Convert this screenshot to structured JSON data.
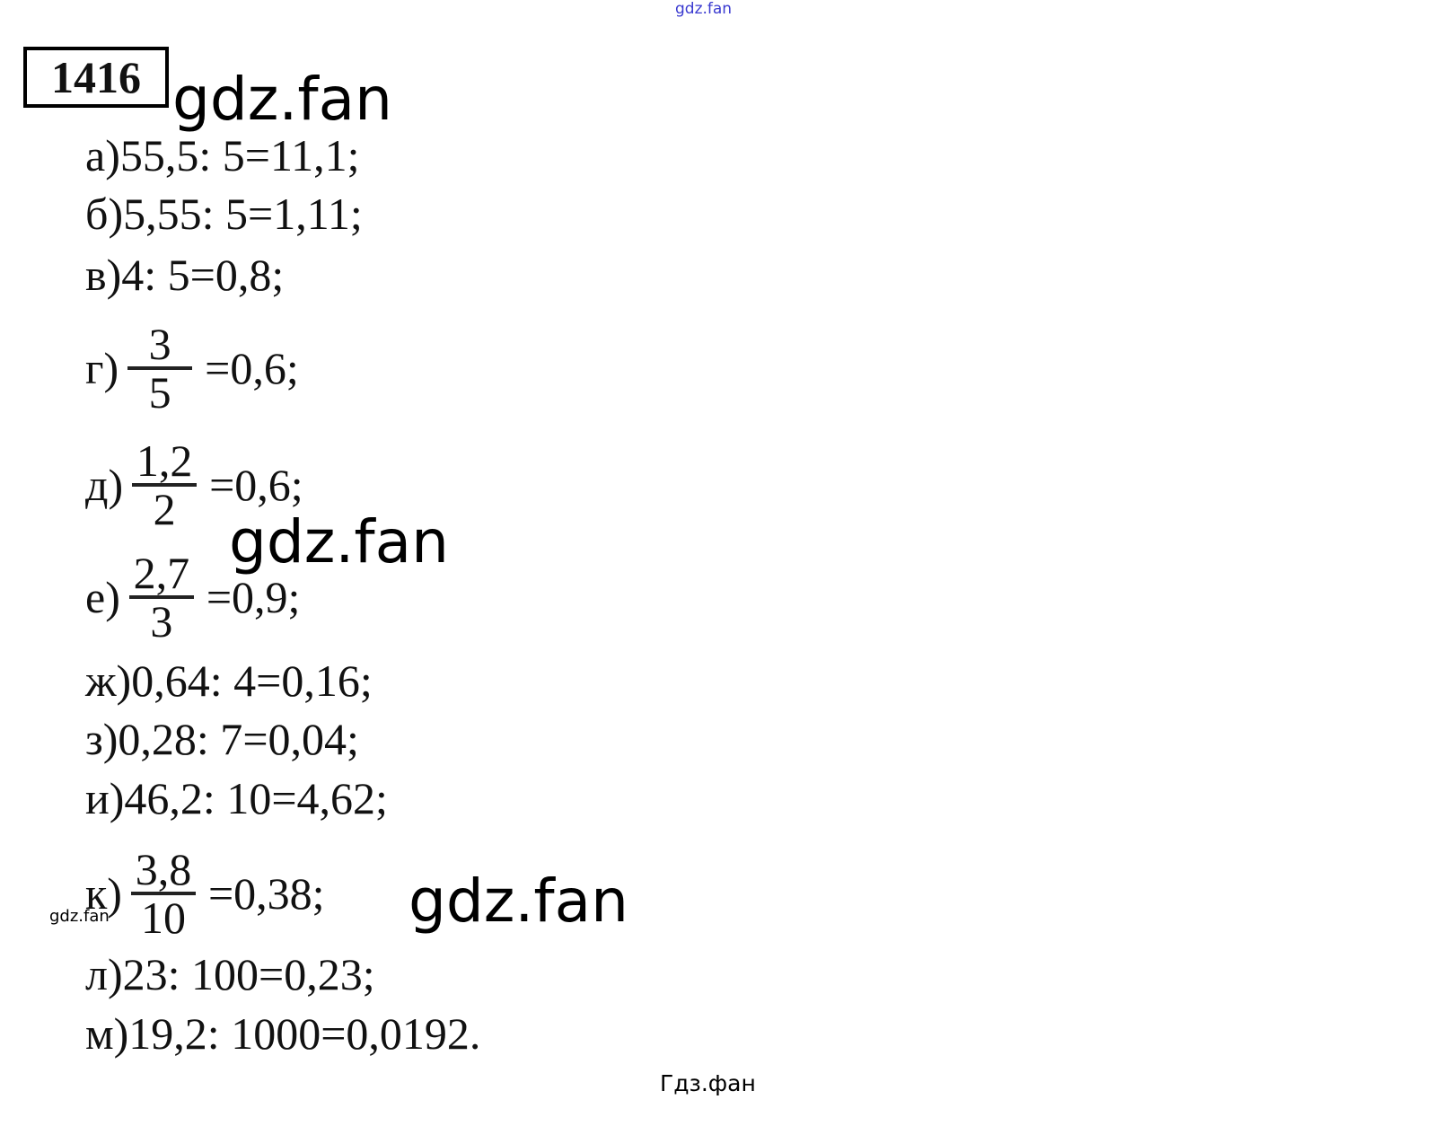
{
  "watermarks": {
    "top": "gdz.fan",
    "big": "gdz.fan",
    "small": "gdz.fan",
    "bottom": "Гдз.фан",
    "top_color": "#3a3ad0"
  },
  "problem_number": "1416",
  "items": [
    {
      "label": "а)",
      "expr": "55,5: 5",
      "eq": "=",
      "result": "11,1;"
    },
    {
      "label": "б)",
      "expr": "5,55: 5",
      "eq": "=",
      "result": "1,11;"
    },
    {
      "label": "в)",
      "expr": "4: 5",
      "eq": "=",
      "result": "0,8;"
    },
    {
      "label": "г)",
      "num": "3",
      "den": "5",
      "eq": "=",
      "result": "0,6;"
    },
    {
      "label": "д)",
      "num": "1,2",
      "den": "2",
      "eq": "=",
      "result": "0,6;"
    },
    {
      "label": "е)",
      "num": "2,7",
      "den": "3",
      "eq": "=",
      "result": "0,9;"
    },
    {
      "label": "ж)",
      "expr": "0,64: 4",
      "eq": "=",
      "result": "0,16;"
    },
    {
      "label": "з)",
      "expr": "0,28: 7",
      "eq": "=",
      "result": "0,04;"
    },
    {
      "label": "и)",
      "expr": "46,2: 10",
      "eq": "=",
      "result": "4,62;"
    },
    {
      "label": "к)",
      "num": "3,8",
      "den": "10",
      "eq": "=",
      "result": "0,38;"
    },
    {
      "label": "л)",
      "expr": "23: 100",
      "eq": "=",
      "result": "0,23;"
    },
    {
      "label": "м)",
      "expr": "19,2: 1000",
      "eq": "=",
      "result": "0,0192."
    }
  ]
}
